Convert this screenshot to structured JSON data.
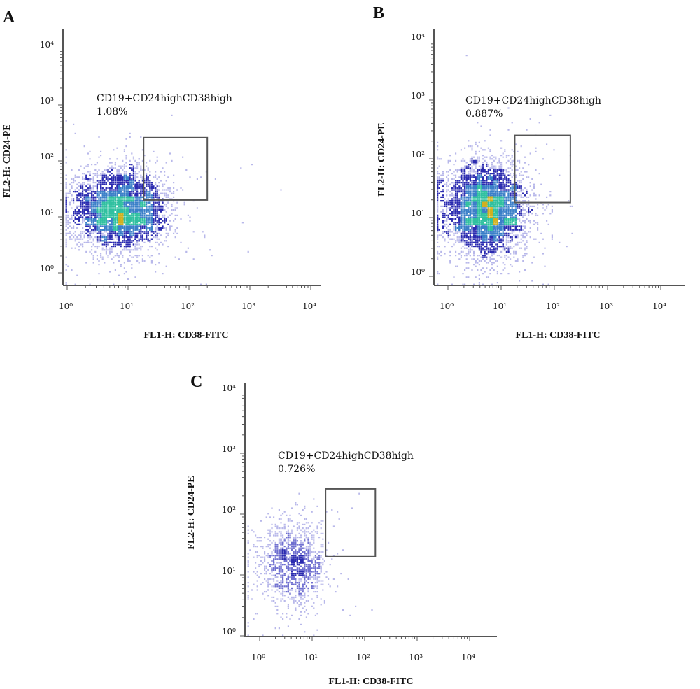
{
  "chart_data": [
    {
      "type": "scatter",
      "panel": "A",
      "xlabel": "FL1-H: CD38-FITC",
      "ylabel": "FL2-H: CD24-PE",
      "x_scale": "log",
      "y_scale": "log",
      "xlim": [
        1,
        10000
      ],
      "ylim": [
        1,
        10000
      ],
      "x_tick_labels": [
        "10⁰",
        "10¹",
        "10²",
        "10³",
        "10⁴"
      ],
      "y_tick_labels": [
        "10⁰",
        "10¹",
        "10²",
        "10³",
        "10⁴"
      ],
      "gate": {
        "label": "CD19+CD24highCD38high",
        "percent": "1.08%",
        "x_range": [
          18,
          200
        ],
        "y_range": [
          20,
          260
        ]
      },
      "population": {
        "center": [
          7,
          14
        ],
        "spread_decades": [
          0.38,
          0.36
        ],
        "events": 4200,
        "density": "high"
      },
      "grid": false
    },
    {
      "type": "scatter",
      "panel": "B",
      "xlabel": "FL1-H: CD38-FITC",
      "ylabel": "FL2-H: CD24-PE",
      "x_scale": "log",
      "y_scale": "log",
      "xlim": [
        1,
        10000
      ],
      "ylim": [
        1,
        10000
      ],
      "x_tick_labels": [
        "10⁰",
        "10¹",
        "10²",
        "10³",
        "10⁴"
      ],
      "y_tick_labels": [
        "10⁰",
        "10¹",
        "10²",
        "10³",
        "10⁴"
      ],
      "gate": {
        "label": "CD19+CD24highCD38high",
        "percent": "0.887%",
        "x_range": [
          18,
          200
        ],
        "y_range": [
          18,
          250
        ]
      },
      "population": {
        "center": [
          5,
          14
        ],
        "spread_decades": [
          0.38,
          0.4
        ],
        "events": 4600,
        "density": "high"
      },
      "grid": false
    },
    {
      "type": "scatter",
      "panel": "C",
      "xlabel": "FL1-H: CD38-FITC",
      "ylabel": "FL2-H: CD24-PE",
      "x_scale": "log",
      "y_scale": "log",
      "xlim": [
        1,
        10000
      ],
      "ylim": [
        1,
        10000
      ],
      "x_tick_labels": [
        "10⁰",
        "10¹",
        "10²",
        "10³",
        "10⁴"
      ],
      "y_tick_labels": [
        "10⁰",
        "10¹",
        "10²",
        "10³",
        "10⁴"
      ],
      "gate": {
        "label": "CD19+CD24highCD38high",
        "percent": "0.726%",
        "x_range": [
          18,
          160
        ],
        "y_range": [
          20,
          260
        ]
      },
      "population": {
        "center": [
          4,
          16
        ],
        "spread_decades": [
          0.34,
          0.36
        ],
        "events": 1300,
        "density": "low"
      },
      "grid": false
    }
  ],
  "colors": {
    "axis": "#555555",
    "gate": "#555555",
    "density_low": "#b8b8ea",
    "density_mid": "#2b2bb0",
    "density_high": "#30c0a0",
    "density_peak": "#d0b020"
  }
}
